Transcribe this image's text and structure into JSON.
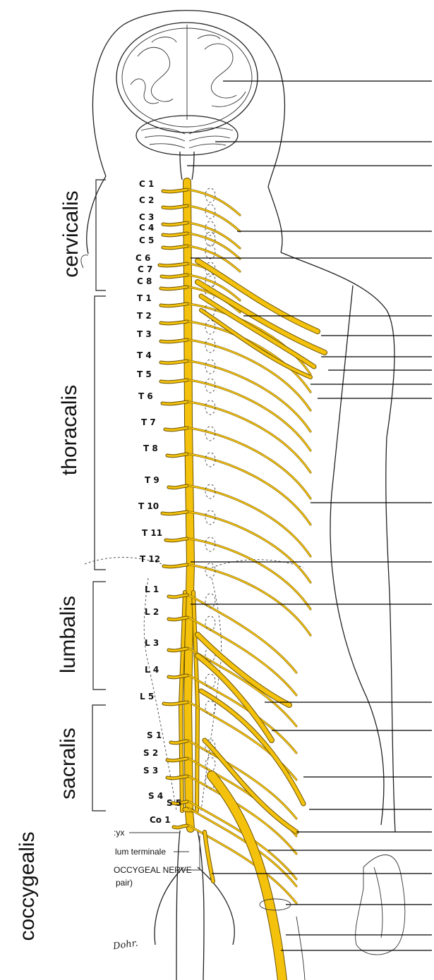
{
  "figure": {
    "nerve_color": "#f4c20d",
    "outline_color": "#222222"
  },
  "regions": [
    {
      "key": "cervical",
      "label": "cervicalis"
    },
    {
      "key": "thoracic",
      "label": "thoracalis"
    },
    {
      "key": "lumbar",
      "label": "lumbalis"
    },
    {
      "key": "sacral",
      "label": "sacralis"
    },
    {
      "key": "coccygeal",
      "label": "coccygealis"
    }
  ],
  "segments": [
    "C 1",
    "C 2",
    "C 3",
    "C 4",
    "C 5",
    "C 6",
    "C 7",
    "C 8",
    "T 1",
    "T 2",
    "T 3",
    "T 4",
    "T 5",
    "T 6",
    "T 7",
    "T 8",
    "T 9",
    "T 10",
    "T 11",
    "T 12",
    "L 1",
    "L 2",
    "L 3",
    "L 4",
    "L 5",
    "S 1",
    "S 2",
    "S 3",
    "S 4",
    "S 5",
    "Co 1"
  ],
  "bottom_labels": {
    "coccyx": ":yx",
    "filum": "lum terminale",
    "coccygeal_nerve": "OCCYGEAL NERVE",
    "pair": "pair)"
  },
  "signature": "Dohr."
}
